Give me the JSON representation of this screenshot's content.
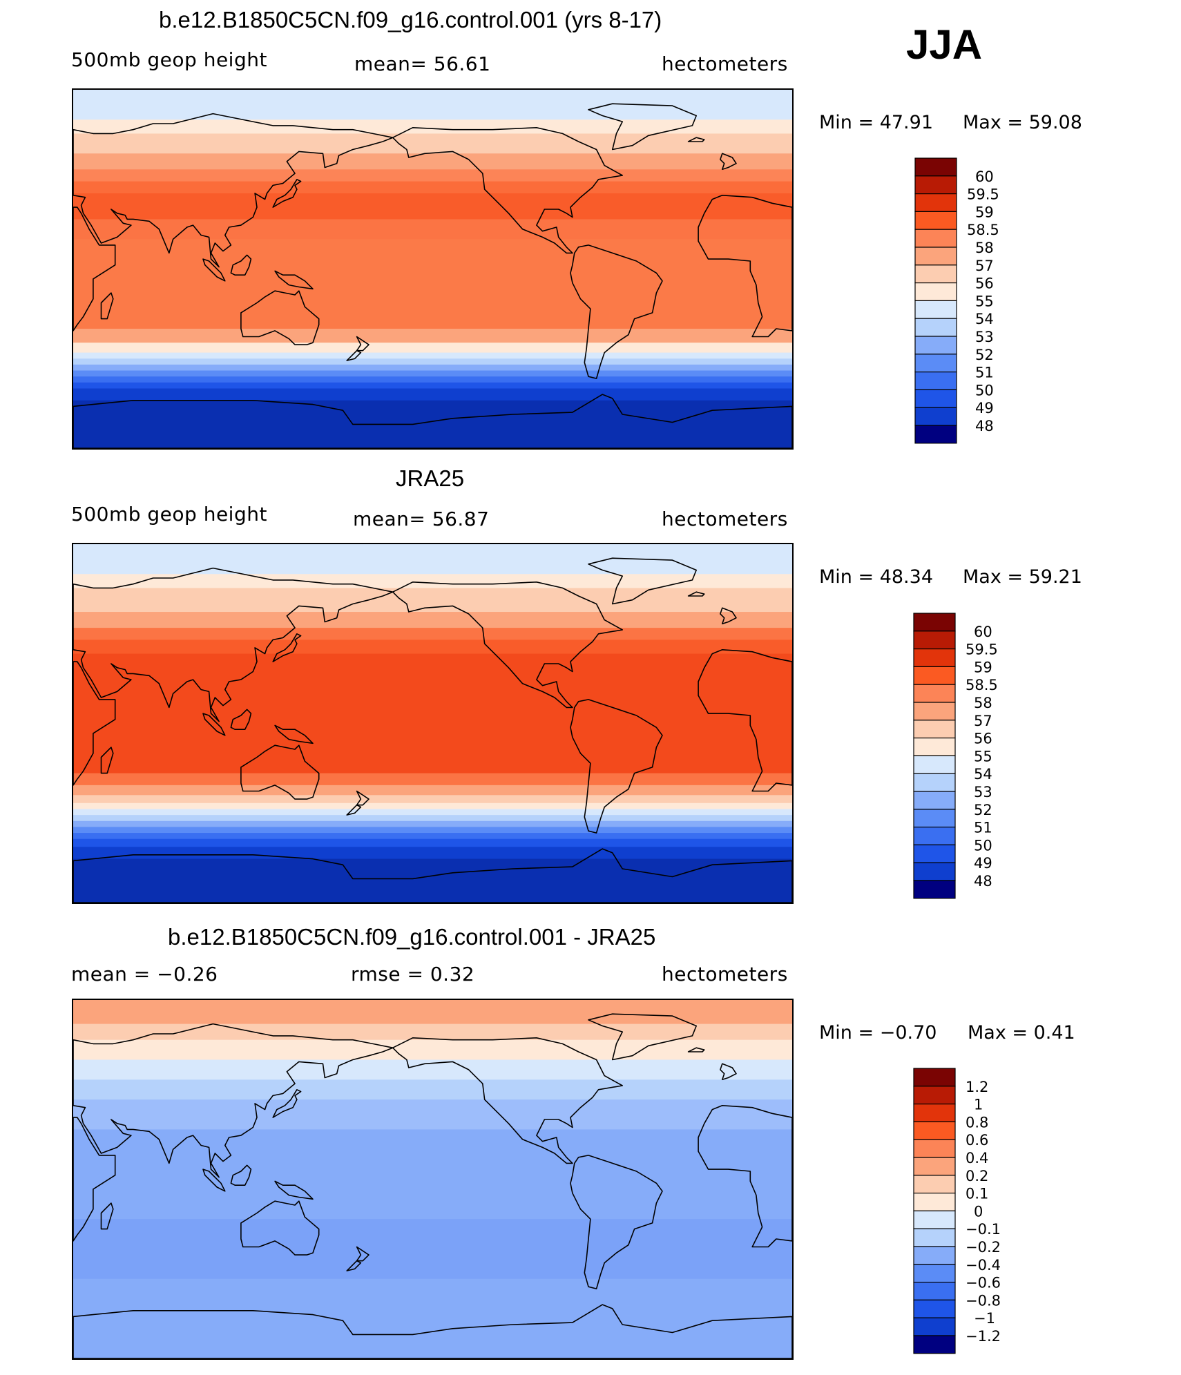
{
  "season": "JJA",
  "panels": [
    {
      "id": "model",
      "title": "b.e12.B1850C5CN.f09_g16.control.001 (yrs 8-17)",
      "left_label": "500mb geop height",
      "center_label": "mean=   56.61",
      "right_label": "hectometers",
      "min_text": "Min =    47.91",
      "max_text": "Max =    59.08",
      "colorbar_labels": [
        "60",
        "59.5",
        "59",
        "58.5",
        "58",
        "57",
        "56",
        "55",
        "54",
        "53",
        "52",
        "51",
        "50",
        "49",
        "48"
      ],
      "bands": [
        {
          "lat": 75,
          "color": "#d7e8fc"
        },
        {
          "lat": 68,
          "color": "#fee9d8"
        },
        {
          "lat": 58,
          "color": "#fccdb1"
        },
        {
          "lat": 50,
          "color": "#fba47c"
        },
        {
          "lat": 44,
          "color": "#fc8457"
        },
        {
          "lat": 38,
          "color": "#fb6c3a"
        },
        {
          "lat": 25,
          "color": "#f95c2a"
        },
        {
          "lat": 15,
          "color": "#fb7444"
        },
        {
          "lat": -30,
          "color": "#fb7a48"
        },
        {
          "lat": -37,
          "color": "#fba47c"
        },
        {
          "lat": -42,
          "color": "#fee9d8"
        },
        {
          "lat": -45,
          "color": "#d7e8fc"
        },
        {
          "lat": -48,
          "color": "#b5d2fb"
        },
        {
          "lat": -51,
          "color": "#86acf9"
        },
        {
          "lat": -54,
          "color": "#5b8cf6"
        },
        {
          "lat": -57,
          "color": "#3a6ff1"
        },
        {
          "lat": -60,
          "color": "#1f55e8"
        },
        {
          "lat": -66,
          "color": "#0f3fcf"
        },
        {
          "lat": -90,
          "color": "#0a2fb0"
        }
      ]
    },
    {
      "id": "obs",
      "title": "JRA25",
      "left_label": "500mb geop height",
      "center_label": "mean=   56.87",
      "right_label": "hectometers",
      "min_text": "Min =    48.34",
      "max_text": "Max =    59.21",
      "colorbar_labels": [
        "60",
        "59.5",
        "59",
        "58.5",
        "58",
        "57",
        "56",
        "55",
        "54",
        "53",
        "52",
        "51",
        "50",
        "49",
        "48"
      ],
      "bands": [
        {
          "lat": 75,
          "color": "#d7e8fc"
        },
        {
          "lat": 68,
          "color": "#fee9d8"
        },
        {
          "lat": 56,
          "color": "#fccdb1"
        },
        {
          "lat": 48,
          "color": "#fba47c"
        },
        {
          "lat": 42,
          "color": "#fb7444"
        },
        {
          "lat": 35,
          "color": "#f95c2a"
        },
        {
          "lat": -25,
          "color": "#f34a1c"
        },
        {
          "lat": -31,
          "color": "#fb7444"
        },
        {
          "lat": -36,
          "color": "#fba47c"
        },
        {
          "lat": -40,
          "color": "#fccdb1"
        },
        {
          "lat": -43,
          "color": "#fee9d8"
        },
        {
          "lat": -46,
          "color": "#d7e8fc"
        },
        {
          "lat": -49,
          "color": "#b5d2fb"
        },
        {
          "lat": -52,
          "color": "#86acf9"
        },
        {
          "lat": -55,
          "color": "#5b8cf6"
        },
        {
          "lat": -58,
          "color": "#3a6ff1"
        },
        {
          "lat": -62,
          "color": "#1f55e8"
        },
        {
          "lat": -68,
          "color": "#0f3fcf"
        },
        {
          "lat": -90,
          "color": "#0a2fb0"
        }
      ]
    },
    {
      "id": "diff",
      "title": "b.e12.B1850C5CN.f09_g16.control.001 - JRA25",
      "left_label": "mean =   −0.26",
      "center_label": "rmse =    0.32",
      "right_label": "hectometers",
      "min_text": "Min =   −0.70",
      "max_text": "Max =     0.41",
      "colorbar_labels": [
        "1.2",
        "1",
        "0.8",
        "0.6",
        "0.4",
        "0.2",
        "0.1",
        "0",
        "−0.1",
        "−0.2",
        "−0.4",
        "−0.6",
        "−0.8",
        "−1",
        "−1.2"
      ],
      "bands": [
        {
          "lat": 78,
          "color": "#fba47c"
        },
        {
          "lat": 70,
          "color": "#fccdb1"
        },
        {
          "lat": 60,
          "color": "#fee9d8"
        },
        {
          "lat": 50,
          "color": "#d7e8fc"
        },
        {
          "lat": 40,
          "color": "#b5d2fb"
        },
        {
          "lat": 25,
          "color": "#9dbdfb"
        },
        {
          "lat": -20,
          "color": "#86acf9"
        },
        {
          "lat": -50,
          "color": "#7ba2f8"
        },
        {
          "lat": -62,
          "color": "#86acf9"
        },
        {
          "lat": -90,
          "color": "#86acf9"
        }
      ]
    }
  ],
  "colorbar_colors": [
    "#7a0403",
    "#b81b05",
    "#e2340b",
    "#fb5a22",
    "#fc8457",
    "#fba47c",
    "#fccdb1",
    "#fee9d8",
    "#d7e8fc",
    "#b5d2fb",
    "#86acf9",
    "#5b8cf6",
    "#3a6ff1",
    "#1f55e8",
    "#0f3fcf",
    "#000080"
  ]
}
